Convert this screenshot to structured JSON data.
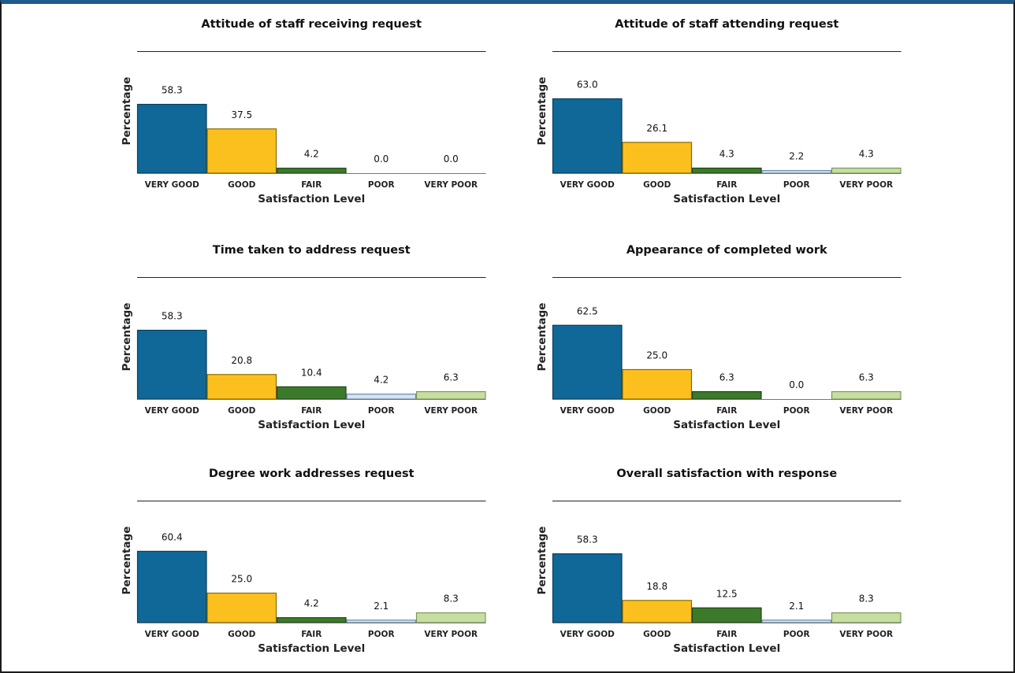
{
  "colors": [
    "#0f6898",
    "#fcc01e",
    "#3b7a2a",
    "#d4e4f3",
    "#c7dea0"
  ],
  "chart_data": [
    {
      "type": "bar",
      "title": "Attitude of staff receiving request",
      "xlabel": "Satisfaction Level",
      "ylabel": "Percentage",
      "categories": [
        "VERY GOOD",
        "GOOD",
        "FAIR",
        "POOR",
        "VERY POOR"
      ],
      "values": [
        58.3,
        37.5,
        4.2,
        0.0,
        0.0
      ],
      "labels": [
        "58.3",
        "37.5",
        "4.2",
        "0.0",
        "0.0"
      ],
      "ylim": [
        0,
        100
      ],
      "grid": false
    },
    {
      "type": "bar",
      "title": "Attitude of staff attending request",
      "xlabel": "Satisfaction Level",
      "ylabel": "Percentage",
      "categories": [
        "VERY GOOD",
        "GOOD",
        "FAIR",
        "POOR",
        "VERY POOR"
      ],
      "values": [
        63.0,
        26.1,
        4.3,
        2.2,
        4.3
      ],
      "labels": [
        "63.0",
        "26.1",
        "4.3",
        "2.2",
        "4.3"
      ],
      "ylim": [
        0,
        100
      ],
      "grid": false
    },
    {
      "type": "bar",
      "title": "Time taken to address request",
      "xlabel": "Satisfaction Level",
      "ylabel": "Percentage",
      "categories": [
        "VERY GOOD",
        "GOOD",
        "FAIR",
        "POOR",
        "VERY POOR"
      ],
      "values": [
        58.3,
        20.8,
        10.4,
        4.2,
        6.3
      ],
      "labels": [
        "58.3",
        "20.8",
        "10.4",
        "4.2",
        "6.3"
      ],
      "ylim": [
        0,
        100
      ],
      "grid": false
    },
    {
      "type": "bar",
      "title": "Appearance of completed work",
      "xlabel": "Satisfaction Level",
      "ylabel": "Percentage",
      "categories": [
        "VERY GOOD",
        "GOOD",
        "FAIR",
        "POOR",
        "VERY POOR"
      ],
      "values": [
        62.5,
        25.0,
        6.3,
        0.0,
        6.3
      ],
      "labels": [
        "62.5",
        "25.0",
        "6.3",
        "0.0",
        "6.3"
      ],
      "ylim": [
        0,
        100
      ],
      "grid": false
    },
    {
      "type": "bar",
      "title": "Degree work addresses request",
      "xlabel": "Satisfaction Level",
      "ylabel": "Percentage",
      "categories": [
        "VERY GOOD",
        "GOOD",
        "FAIR",
        "POOR",
        "VERY POOR"
      ],
      "values": [
        60.4,
        25.0,
        4.2,
        2.1,
        8.3
      ],
      "labels": [
        "60.4",
        "25.0",
        "4.2",
        "2.1",
        "8.3"
      ],
      "ylim": [
        0,
        100
      ],
      "grid": false
    },
    {
      "type": "bar",
      "title": "Overall satisfaction with response",
      "xlabel": "Satisfaction Level",
      "ylabel": "Percentage",
      "categories": [
        "VERY GOOD",
        "GOOD",
        "FAIR",
        "POOR",
        "VERY POOR"
      ],
      "values": [
        58.3,
        18.8,
        12.5,
        2.1,
        8.3
      ],
      "labels": [
        "58.3",
        "18.8",
        "12.5",
        "2.1",
        "8.3"
      ],
      "ylim": [
        0,
        100
      ],
      "grid": false
    }
  ]
}
